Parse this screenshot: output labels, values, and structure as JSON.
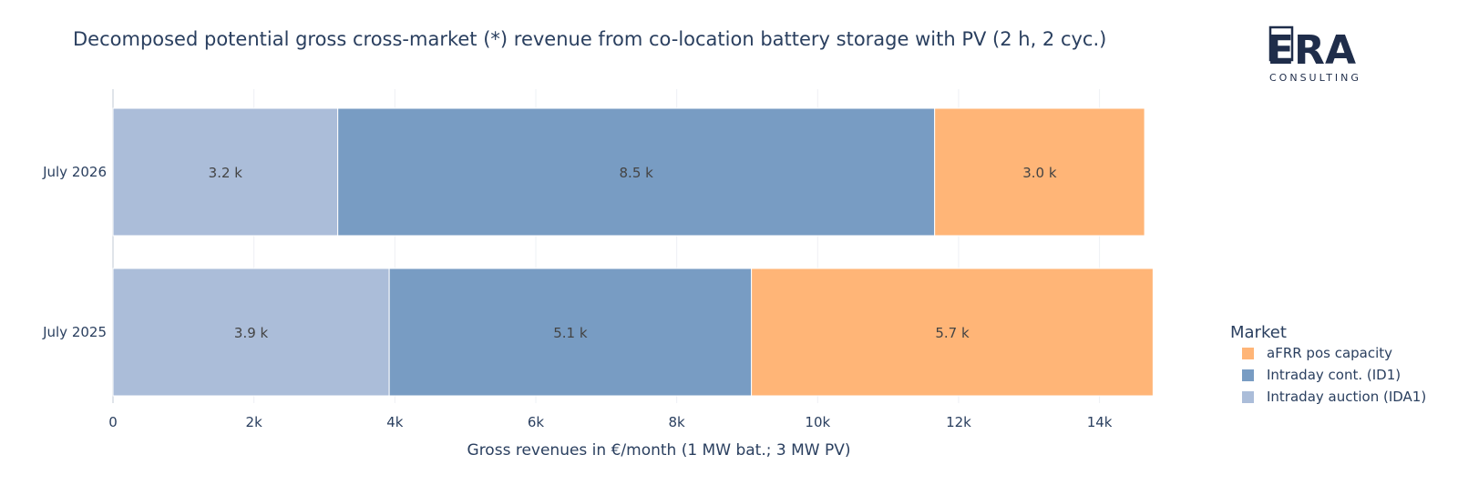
{
  "chart_data": {
    "type": "bar",
    "orientation": "horizontal",
    "stacked": true,
    "title": "Decomposed potential gross cross-market (*) revenue from co-location battery storage with PV (2 h, 2 cyc.)",
    "xlabel": "Gross revenues in €/month (1 MW bat.; 3 MW PV)",
    "ylabel": "",
    "xlim": [
      0,
      15000
    ],
    "x_ticks": [
      0,
      2000,
      4000,
      6000,
      8000,
      10000,
      12000,
      14000
    ],
    "x_tick_labels": [
      "0",
      "2k",
      "4k",
      "6k",
      "8k",
      "10k",
      "12k",
      "14k"
    ],
    "categories": [
      "July 2025",
      "July 2026"
    ],
    "grid": true,
    "legend_position": "right",
    "series": [
      {
        "name": "Intraday auction (IDA1)",
        "color": "#abbdd9",
        "values": [
          3920,
          3190
        ],
        "labels": [
          "3.9 k",
          "3.2 k"
        ]
      },
      {
        "name": "Intraday cont. (ID1)",
        "color": "#789cc3",
        "values": [
          5140,
          8470
        ],
        "labels": [
          "5.1 k",
          "8.5 k"
        ]
      },
      {
        "name": "aFRR pos capacity",
        "color": "#ffb577",
        "values": [
          5700,
          2980
        ],
        "labels": [
          "5.7 k",
          "3.0 k"
        ]
      }
    ],
    "legend": {
      "title": "Market",
      "items": [
        "aFRR pos capacity",
        "Intraday cont. (ID1)",
        "Intraday auction (IDA1)"
      ]
    }
  },
  "logo": {
    "text": "ERA",
    "subtext": "CONSULTING"
  }
}
